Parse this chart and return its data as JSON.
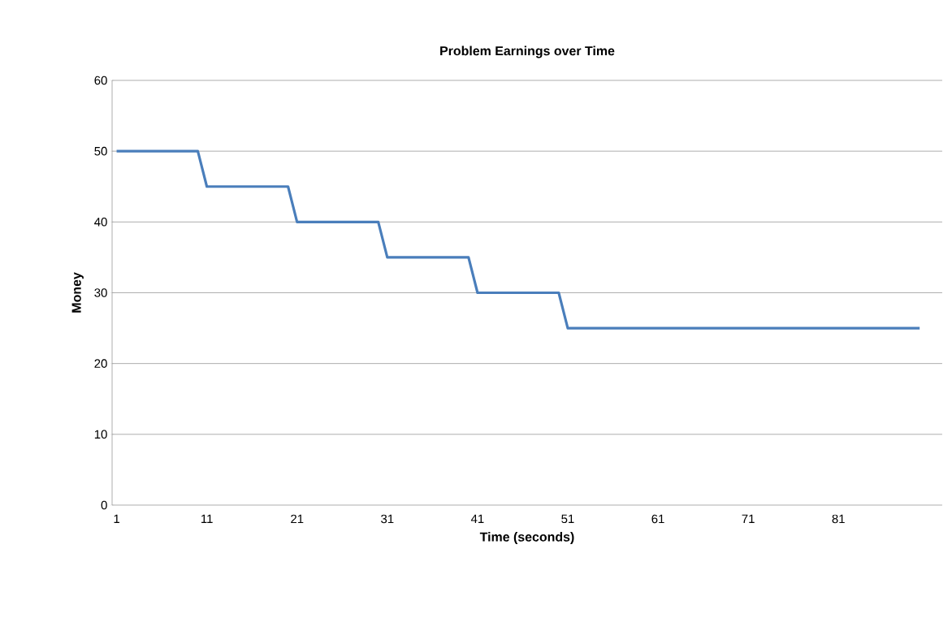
{
  "chart_data": {
    "type": "line",
    "title": "Problem Earnings over Time",
    "xlabel": "Time (seconds)",
    "ylabel": "Money",
    "x": [
      1,
      2,
      3,
      4,
      5,
      6,
      7,
      8,
      9,
      10,
      11,
      12,
      13,
      14,
      15,
      16,
      17,
      18,
      19,
      20,
      21,
      22,
      23,
      24,
      25,
      26,
      27,
      28,
      29,
      30,
      31,
      32,
      33,
      34,
      35,
      36,
      37,
      38,
      39,
      40,
      41,
      42,
      43,
      44,
      45,
      46,
      47,
      48,
      49,
      50,
      51,
      52,
      53,
      54,
      55,
      56,
      57,
      58,
      59,
      60,
      61,
      62,
      63,
      64,
      65,
      66,
      67,
      68,
      69,
      70,
      71,
      72,
      73,
      74,
      75,
      76,
      77,
      78,
      79,
      80,
      81,
      82,
      83,
      84,
      85,
      86,
      87,
      88,
      89,
      90
    ],
    "values": [
      50,
      50,
      50,
      50,
      50,
      50,
      50,
      50,
      50,
      50,
      45,
      45,
      45,
      45,
      45,
      45,
      45,
      45,
      45,
      45,
      40,
      40,
      40,
      40,
      40,
      40,
      40,
      40,
      40,
      40,
      35,
      35,
      35,
      35,
      35,
      35,
      35,
      35,
      35,
      35,
      30,
      30,
      30,
      30,
      30,
      30,
      30,
      30,
      30,
      30,
      25,
      25,
      25,
      25,
      25,
      25,
      25,
      25,
      25,
      25,
      25,
      25,
      25,
      25,
      25,
      25,
      25,
      25,
      25,
      25,
      25,
      25,
      25,
      25,
      25,
      25,
      25,
      25,
      25,
      25,
      25,
      25,
      25,
      25,
      25,
      25,
      25,
      25,
      25,
      25
    ],
    "color": "#4a7ebb",
    "xlim": [
      0.5,
      92.5
    ],
    "xticks": [
      1,
      11,
      21,
      31,
      41,
      51,
      61,
      71,
      81
    ],
    "ylim": [
      0,
      60
    ],
    "yticks": [
      0,
      10,
      20,
      30,
      40,
      50,
      60
    ],
    "grid": "y",
    "marker": "none",
    "line_style": "solid"
  }
}
